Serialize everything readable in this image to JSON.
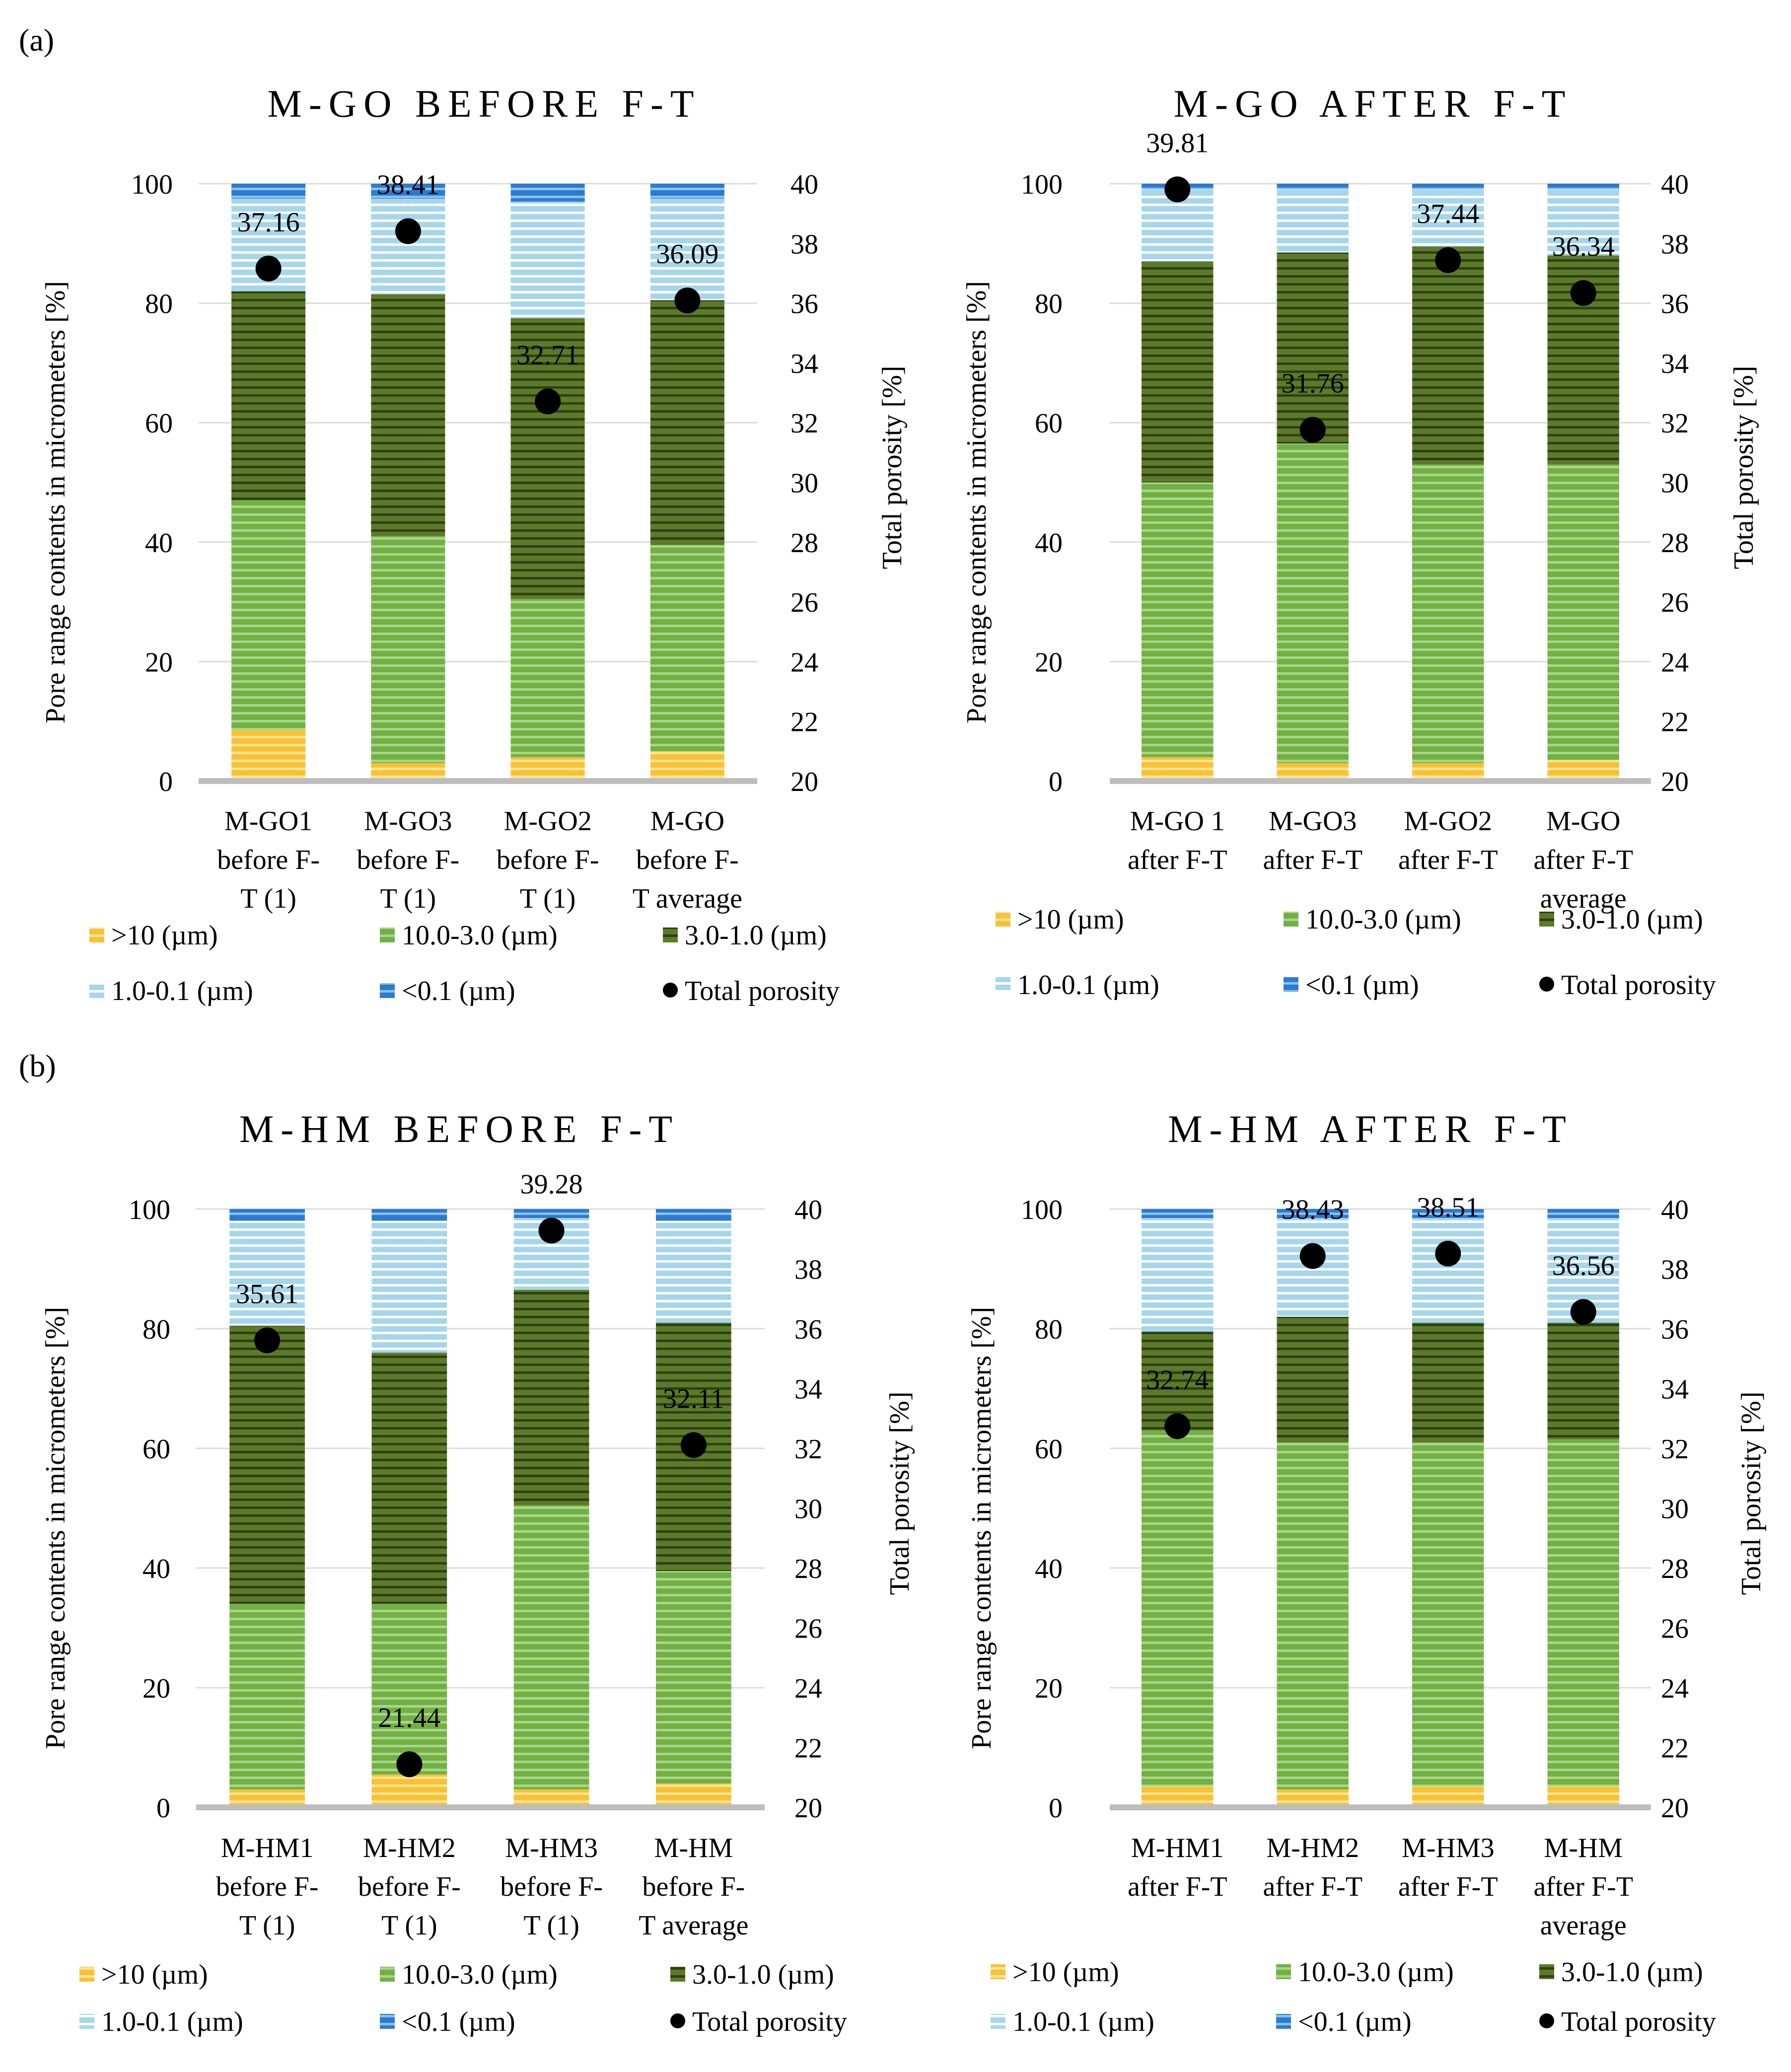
{
  "panel_labels": {
    "a": "(a)",
    "b": "(b)"
  },
  "colors": {
    "gt10": "#f7c233",
    "r10_3": "#72b043",
    "r3_1": "#5c7a2a",
    "r1_01": "#a5d6ec",
    "lt01": "#2b7bd0",
    "total": "#000000"
  },
  "chart_data": [
    {
      "type": "bar",
      "title": "M-GO BEFORE F-T",
      "ylabel": "Pore range contents in micrometers  [%]",
      "y2label": "Total porosity [%]",
      "ylim": [
        0,
        100
      ],
      "y2lim": [
        20,
        40
      ],
      "yticks": [
        "0",
        "20",
        "40",
        "60",
        "80",
        "100"
      ],
      "y2ticks": [
        "20",
        "22",
        "24",
        "26",
        "28",
        "30",
        "32",
        "34",
        "36",
        "38",
        "40"
      ],
      "categories": [
        [
          "M-GO1",
          "before F-",
          "T (1)"
        ],
        [
          "M-GO3",
          "before F-",
          "T (1)"
        ],
        [
          "M-GO2",
          "before F-",
          "T (1)"
        ],
        [
          "M-GO",
          "before F-",
          "T average"
        ]
      ],
      "series": [
        {
          "name": ">10 (µm)",
          "values": [
            8.5,
            3.0,
            4.0,
            5.0
          ]
        },
        {
          "name": "10.0-3.0 (µm)",
          "values": [
            38.5,
            38.0,
            26.5,
            34.5
          ]
        },
        {
          "name": "3.0-1.0 (µm)",
          "values": [
            35.0,
            40.5,
            47.0,
            41.0
          ]
        },
        {
          "name": "1.0-0.1 (µm)",
          "values": [
            15.5,
            16.0,
            19.5,
            17.0
          ]
        },
        {
          "name": "<0.1 (µm)",
          "values": [
            2.5,
            2.5,
            3.0,
            2.5
          ]
        }
      ],
      "total_porosity": {
        "name": "Total porosity",
        "values": [
          37.16,
          38.41,
          32.71,
          36.09
        ],
        "labels": [
          "37.16",
          "38.41",
          "32.71",
          "36.09"
        ]
      },
      "legend": [
        ">10 (µm)",
        "10.0-3.0 (µm)",
        "3.0-1.0 (µm)",
        "1.0-0.1 (µm)",
        "<0.1 (µm)",
        "Total porosity"
      ]
    },
    {
      "type": "bar",
      "title": "M-GO AFTER F-T",
      "ylabel": "Pore range contents in micrometers  [%]",
      "y2label": "Total porosity [%]",
      "ylim": [
        0,
        100
      ],
      "y2lim": [
        20,
        40
      ],
      "yticks": [
        "0",
        "20",
        "40",
        "60",
        "80",
        "100"
      ],
      "y2ticks": [
        "20",
        "22",
        "24",
        "26",
        "28",
        "30",
        "32",
        "34",
        "36",
        "38",
        "40"
      ],
      "categories": [
        [
          "M-GO 1",
          "after F-T"
        ],
        [
          "M-GO3",
          "after F-T"
        ],
        [
          "M-GO2",
          "after F-T"
        ],
        [
          "M-GO",
          "after F-T",
          "average"
        ]
      ],
      "series": [
        {
          "name": ">10 (µm)",
          "values": [
            4.0,
            3.0,
            3.0,
            3.5
          ]
        },
        {
          "name": "10.0-3.0 (µm)",
          "values": [
            46.0,
            53.5,
            50.0,
            49.5
          ]
        },
        {
          "name": "3.0-1.0 (µm)",
          "values": [
            37.0,
            32.0,
            36.5,
            35.0
          ]
        },
        {
          "name": "1.0-0.1 (µm)",
          "values": [
            12.0,
            10.5,
            9.5,
            11.0
          ]
        },
        {
          "name": "<0.1 (µm)",
          "values": [
            1.0,
            1.0,
            1.0,
            1.0
          ]
        }
      ],
      "total_porosity": {
        "name": "Total porosity",
        "values": [
          39.81,
          31.76,
          37.44,
          36.34
        ],
        "labels": [
          "39.81",
          "31.76",
          "37.44",
          "36.34"
        ]
      },
      "legend": [
        ">10 (µm)",
        "10.0-3.0 (µm)",
        "3.0-1.0 (µm)",
        "1.0-0.1 (µm)",
        "<0.1 (µm)",
        "Total porosity"
      ]
    },
    {
      "type": "bar",
      "title": "M-HM BEFORE F-T",
      "ylabel": "Pore range contents in micrometers  [%]",
      "y2label": "Total porosity [%]",
      "ylim": [
        0,
        100
      ],
      "y2lim": [
        20,
        40
      ],
      "yticks": [
        "0",
        "20",
        "40",
        "60",
        "80",
        "100"
      ],
      "y2ticks": [
        "20",
        "22",
        "24",
        "26",
        "28",
        "30",
        "32",
        "34",
        "36",
        "38",
        "40"
      ],
      "categories": [
        [
          "M-HM1",
          "before F-",
          "T (1)"
        ],
        [
          "M-HM2",
          "before F-",
          "T (1)"
        ],
        [
          "M-HM3",
          "before F-",
          "T (1)"
        ],
        [
          "M-HM",
          "before F-",
          "T average"
        ]
      ],
      "series": [
        {
          "name": ">10 (µm)",
          "values": [
            3.0,
            5.5,
            3.0,
            4.0
          ]
        },
        {
          "name": "10.0-3.0 (µm)",
          "values": [
            31.0,
            28.5,
            47.5,
            35.5
          ]
        },
        {
          "name": "3.0-1.0 (µm)",
          "values": [
            46.5,
            42.0,
            36.0,
            41.5
          ]
        },
        {
          "name": "1.0-0.1 (µm)",
          "values": [
            17.5,
            22.0,
            12.0,
            17.0
          ]
        },
        {
          "name": "<0.1 (µm)",
          "values": [
            2.0,
            2.0,
            1.5,
            2.0
          ]
        }
      ],
      "total_porosity": {
        "name": "Total porosity",
        "values": [
          35.61,
          21.44,
          39.28,
          32.11
        ],
        "labels": [
          "35.61",
          "21.44",
          "39.28",
          "32.11"
        ]
      },
      "legend": [
        ">10 (µm)",
        "10.0-3.0 (µm)",
        "3.0-1.0 (µm)",
        "1.0-0.1 (µm)",
        "<0.1 (µm)",
        "Total porosity"
      ]
    },
    {
      "type": "bar",
      "title": "M-HM AFTER F-T",
      "ylabel": "Pore range contents in micrometers  [%]",
      "y2label": "Total porosity [%]",
      "ylim": [
        0,
        100
      ],
      "y2lim": [
        20,
        40
      ],
      "yticks": [
        "0",
        "20",
        "40",
        "60",
        "80",
        "100"
      ],
      "y2ticks": [
        "20",
        "22",
        "24",
        "26",
        "28",
        "30",
        "32",
        "34",
        "36",
        "38",
        "40"
      ],
      "categories": [
        [
          "M-HM1",
          "after F-T"
        ],
        [
          "M-HM2",
          "after F-T"
        ],
        [
          "M-HM3",
          "after F-T"
        ],
        [
          "M-HM",
          "after F-T",
          "average"
        ]
      ],
      "series": [
        {
          "name": ">10 (µm)",
          "values": [
            3.5,
            3.0,
            3.5,
            3.5
          ]
        },
        {
          "name": "10.0-3.0 (µm)",
          "values": [
            59.5,
            58.0,
            57.5,
            58.0
          ]
        },
        {
          "name": "3.0-1.0 (µm)",
          "values": [
            16.5,
            21.0,
            20.0,
            19.5
          ]
        },
        {
          "name": "1.0-0.1 (µm)",
          "values": [
            19.0,
            16.5,
            17.5,
            17.5
          ]
        },
        {
          "name": "<0.1 (µm)",
          "values": [
            1.5,
            1.5,
            1.5,
            1.5
          ]
        }
      ],
      "total_porosity": {
        "name": "Total porosity",
        "values": [
          32.74,
          38.43,
          38.51,
          36.56
        ],
        "labels": [
          "32.74",
          "38.43",
          "38.51",
          "36.56"
        ]
      },
      "legend": [
        ">10 (µm)",
        "10.0-3.0 (µm)",
        "3.0-1.0 (µm)",
        "1.0-0.1 (µm)",
        "<0.1 (µm)",
        "Total porosity"
      ]
    }
  ]
}
